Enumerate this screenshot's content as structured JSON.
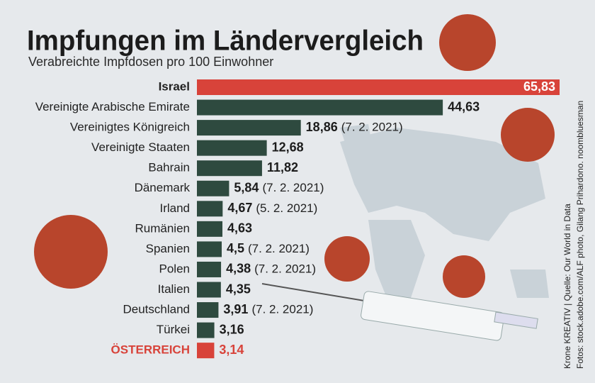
{
  "chart_data": {
    "type": "bar",
    "orientation": "horizontal",
    "title": "Impfungen im Ländervergleich",
    "subtitle": "Verabreichte Impfdosen pro 100 Einwohner",
    "categories": [
      "Israel",
      "Vereinigte Arabische Emirate",
      "Vereinigtes Königreich",
      "Vereinigte Staaten",
      "Bahrain",
      "Dänemark",
      "Irland",
      "Rumänien",
      "Spanien",
      "Polen",
      "Italien",
      "Deutschland",
      "Türkei",
      "ÖSTERREICH"
    ],
    "values": [
      65.83,
      44.63,
      18.86,
      12.68,
      11.82,
      5.84,
      4.67,
      4.63,
      4.5,
      4.38,
      4.35,
      3.91,
      3.16,
      3.14
    ],
    "value_labels": [
      "65,83",
      "44,63",
      "18,86",
      "12,68",
      "11,82",
      "5,84",
      "4,67",
      "4,63",
      "4,5",
      "4,38",
      "4,35",
      "3,91",
      "3,16",
      "3,14"
    ],
    "dates": [
      null,
      null,
      "(7. 2. 2021)",
      null,
      null,
      "(7. 2. 2021)",
      "(5. 2. 2021)",
      null,
      "(7. 2. 2021)",
      "(7. 2. 2021)",
      null,
      "(7. 2. 2021)",
      null,
      null
    ],
    "colors": [
      "#d8433a",
      "#2e4a3f",
      "#2e4a3f",
      "#2e4a3f",
      "#2e4a3f",
      "#2e4a3f",
      "#2e4a3f",
      "#2e4a3f",
      "#2e4a3f",
      "#2e4a3f",
      "#2e4a3f",
      "#2e4a3f",
      "#2e4a3f",
      "#d8433a"
    ],
    "source": "Krone KREATIV | Quelle: Our World in Data",
    "credits": "Fotos: stock.adobe.com/ALF photo, Gilang Prihardono. noombluesman"
  }
}
